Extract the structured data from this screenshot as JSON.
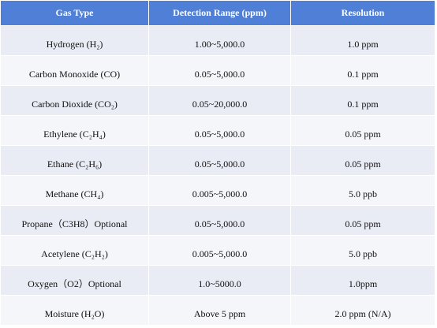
{
  "table": {
    "header": [
      "Gas Type",
      "Detection Range (ppm)",
      "Resolution"
    ],
    "rows": [
      [
        "Hydrogen (H₂)",
        "1.00~5,000.0",
        "1.0 ppm"
      ],
      [
        "Carbon Monoxide (CO)",
        "0.05~5,000.0",
        "0.1 ppm"
      ],
      [
        "Carbon Dioxide (CO₂)",
        "0.05~20,000.0",
        "0.1 ppm"
      ],
      [
        "Ethylene (C₂H₄)",
        "0.05~5,000.0",
        "0.05 ppm"
      ],
      [
        "Ethane (C₂H₆)",
        "0.05~5,000.0",
        "0.05 ppm"
      ],
      [
        "Methane (CH₄)",
        "0.005~5,000.0",
        "5.0 ppb"
      ],
      [
        "Propane（C3H8）Optional",
        "0.05~5,000.0",
        "0.05 ppm"
      ],
      [
        "Acetylene (C₂H₂)",
        "0.005~5,000.0",
        "5.0 ppb"
      ],
      [
        "Oxygen（O2）Optional",
        "1.0~5000.0",
        "1.0ppm"
      ],
      [
        "Moisture (H₂O)",
        "Above 5 ppm",
        "2.0 ppm (N/A)"
      ]
    ]
  }
}
